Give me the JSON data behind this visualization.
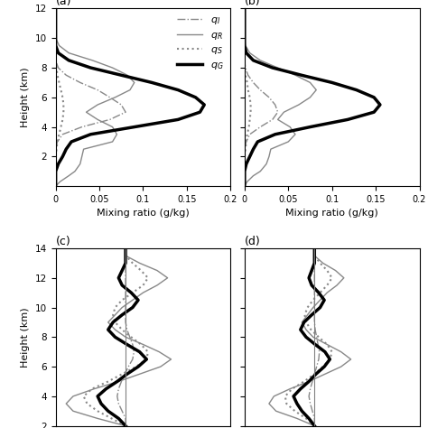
{
  "panels": {
    "a": {
      "label": "(a)",
      "ylim": [
        0,
        12
      ],
      "xlim": [
        0,
        0.2
      ],
      "yticks": [
        2,
        4,
        6,
        8,
        10,
        12
      ],
      "xticks": [
        0,
        0.05,
        0.1,
        0.15,
        0.2
      ],
      "xtick_labels": [
        "0",
        "0.05",
        "0.1",
        "0.15",
        "0.2"
      ],
      "show_legend": true,
      "ylabel": "Height (km)",
      "xlabel": "Mixing ratio (g/kg)",
      "qI": {
        "height": [
          0.0,
          0.3,
          0.7,
          1.0,
          1.5,
          2.0,
          2.5,
          3.0,
          3.5,
          4.0,
          4.5,
          5.0,
          5.5,
          6.0,
          6.5,
          7.0,
          7.5,
          8.0,
          8.5,
          9.0,
          9.5,
          10.0,
          11.0,
          12.0
        ],
        "value": [
          0.0,
          0.0,
          0.0,
          0.0,
          0.0,
          0.0,
          0.0,
          0.002,
          0.008,
          0.03,
          0.062,
          0.08,
          0.075,
          0.062,
          0.048,
          0.028,
          0.012,
          0.003,
          0.0,
          0.0,
          0.0,
          0.0,
          0.0,
          0.0
        ]
      },
      "qR": {
        "height": [
          0.0,
          0.3,
          0.7,
          1.0,
          1.5,
          2.0,
          2.5,
          3.0,
          3.5,
          4.0,
          4.5,
          5.0,
          5.5,
          6.0,
          6.5,
          7.0,
          7.5,
          8.0,
          8.5,
          9.0,
          9.5,
          10.0,
          11.0,
          12.0
        ],
        "value": [
          0.0,
          0.005,
          0.015,
          0.022,
          0.028,
          0.03,
          0.032,
          0.065,
          0.07,
          0.065,
          0.048,
          0.035,
          0.048,
          0.068,
          0.085,
          0.09,
          0.082,
          0.065,
          0.042,
          0.015,
          0.004,
          0.0,
          0.0,
          0.0
        ]
      },
      "qS": {
        "height": [
          0.0,
          0.3,
          0.7,
          1.0,
          1.5,
          2.0,
          2.5,
          3.0,
          3.5,
          4.0,
          4.5,
          5.0,
          5.5,
          6.0,
          6.5,
          7.0,
          7.5,
          8.0,
          8.5,
          9.0,
          9.5,
          10.0,
          11.0,
          12.0
        ],
        "value": [
          0.0,
          0.0,
          0.0,
          0.0,
          0.0,
          0.0,
          0.001,
          0.002,
          0.004,
          0.006,
          0.008,
          0.009,
          0.009,
          0.008,
          0.006,
          0.004,
          0.002,
          0.001,
          0.0,
          0.0,
          0.0,
          0.0,
          0.0,
          0.0
        ]
      },
      "qG": {
        "height": [
          0.0,
          0.3,
          0.7,
          1.0,
          1.5,
          2.0,
          2.5,
          3.0,
          3.5,
          4.0,
          4.5,
          5.0,
          5.5,
          6.0,
          6.5,
          7.0,
          7.5,
          8.0,
          8.5,
          9.0,
          9.5,
          10.0,
          11.0,
          12.0
        ],
        "value": [
          0.0,
          0.0,
          0.0,
          0.0,
          0.003,
          0.008,
          0.012,
          0.018,
          0.04,
          0.09,
          0.14,
          0.165,
          0.17,
          0.16,
          0.14,
          0.11,
          0.075,
          0.04,
          0.015,
          0.003,
          0.0,
          0.0,
          0.0,
          0.0
        ]
      }
    },
    "b": {
      "label": "(b)",
      "ylim": [
        0,
        12
      ],
      "xlim": [
        0,
        0.2
      ],
      "yticks": [
        2,
        4,
        6,
        8,
        10,
        12
      ],
      "xticks": [
        0,
        0.05,
        0.1,
        0.15,
        0.2
      ],
      "xtick_labels": [
        "0",
        "0.05",
        "0.1",
        "0.15",
        "0.2"
      ],
      "show_legend": false,
      "ylabel": "Height (km)",
      "xlabel": "Mixing ratio (g/kg)",
      "qI": {
        "height": [
          0.0,
          0.3,
          0.7,
          1.0,
          1.5,
          2.0,
          2.5,
          3.0,
          3.5,
          4.0,
          4.5,
          5.0,
          5.5,
          6.0,
          6.5,
          7.0,
          7.5,
          8.0,
          8.5,
          9.0,
          9.5,
          10.0,
          11.0,
          12.0
        ],
        "value": [
          0.0,
          0.0,
          0.0,
          0.0,
          0.0,
          0.0,
          0.0,
          0.002,
          0.006,
          0.018,
          0.032,
          0.038,
          0.035,
          0.028,
          0.018,
          0.01,
          0.004,
          0.001,
          0.0,
          0.0,
          0.0,
          0.0,
          0.0,
          0.0
        ]
      },
      "qR": {
        "height": [
          0.0,
          0.3,
          0.7,
          1.0,
          1.5,
          2.0,
          2.5,
          3.0,
          3.5,
          4.0,
          4.5,
          5.0,
          5.5,
          6.0,
          6.5,
          7.0,
          7.5,
          8.0,
          8.5,
          9.0,
          9.5,
          10.0,
          11.0,
          12.0
        ],
        "value": [
          0.0,
          0.003,
          0.01,
          0.018,
          0.025,
          0.028,
          0.03,
          0.05,
          0.058,
          0.052,
          0.038,
          0.045,
          0.062,
          0.075,
          0.082,
          0.075,
          0.058,
          0.038,
          0.018,
          0.006,
          0.001,
          0.0,
          0.0,
          0.0
        ]
      },
      "qS": {
        "height": [
          0.0,
          0.3,
          0.7,
          1.0,
          1.5,
          2.0,
          2.5,
          3.0,
          3.5,
          4.0,
          4.5,
          5.0,
          5.5,
          6.0,
          6.5,
          7.0,
          7.5,
          8.0,
          8.5,
          9.0,
          9.5,
          10.0,
          11.0,
          12.0
        ],
        "value": [
          0.0,
          0.0,
          0.0,
          0.0,
          0.0,
          0.0,
          0.001,
          0.002,
          0.003,
          0.005,
          0.006,
          0.007,
          0.007,
          0.006,
          0.004,
          0.003,
          0.001,
          0.0,
          0.0,
          0.0,
          0.0,
          0.0,
          0.0,
          0.0
        ]
      },
      "qG": {
        "height": [
          0.0,
          0.3,
          0.7,
          1.0,
          1.5,
          2.0,
          2.5,
          3.0,
          3.5,
          4.0,
          4.5,
          5.0,
          5.5,
          6.0,
          6.5,
          7.0,
          7.5,
          8.0,
          8.5,
          9.0,
          9.5,
          10.0,
          11.0,
          12.0
        ],
        "value": [
          0.0,
          0.0,
          0.0,
          0.0,
          0.002,
          0.006,
          0.01,
          0.015,
          0.035,
          0.075,
          0.118,
          0.148,
          0.155,
          0.148,
          0.128,
          0.1,
          0.065,
          0.032,
          0.01,
          0.002,
          0.0,
          0.0,
          0.0,
          0.0
        ]
      }
    },
    "c": {
      "label": "(c)",
      "ylim": [
        2,
        14
      ],
      "xlim": [
        -0.1,
        0.15
      ],
      "yticks": [
        2,
        4,
        6,
        8,
        10,
        12,
        14
      ],
      "show_legend": false,
      "ylabel": "Height (km)",
      "xlabel": "",
      "zero_line": true,
      "qI": {
        "height": [
          2.0,
          2.5,
          3.0,
          3.5,
          4.0,
          4.5,
          5.0,
          5.5,
          6.0,
          6.5,
          7.0,
          7.5,
          8.0,
          8.5,
          9.0,
          9.5,
          10.0,
          10.5,
          11.0,
          11.5,
          12.0,
          12.5,
          13.0,
          13.5,
          14.0
        ],
        "value": [
          0.0,
          0.0,
          -0.005,
          -0.01,
          -0.012,
          -0.01,
          -0.006,
          -0.001,
          0.004,
          0.01,
          0.012,
          0.01,
          0.006,
          0.002,
          0.0,
          0.0,
          0.0,
          0.0,
          0.0,
          0.0,
          0.0,
          0.0,
          0.0,
          0.0,
          0.0
        ]
      },
      "qR": {
        "height": [
          2.0,
          2.5,
          3.0,
          3.5,
          4.0,
          4.5,
          5.0,
          5.5,
          6.0,
          6.5,
          7.0,
          7.5,
          8.0,
          8.5,
          9.0,
          9.5,
          10.0,
          10.5,
          11.0,
          11.5,
          12.0,
          12.5,
          13.0,
          13.5,
          14.0
        ],
        "value": [
          0.0,
          -0.04,
          -0.075,
          -0.085,
          -0.075,
          -0.045,
          -0.01,
          0.02,
          0.05,
          0.065,
          0.048,
          0.025,
          0.0,
          -0.015,
          -0.025,
          -0.015,
          -0.005,
          0.01,
          0.025,
          0.045,
          0.06,
          0.045,
          0.02,
          0.0,
          0.0
        ]
      },
      "qS": {
        "height": [
          2.0,
          2.5,
          3.0,
          3.5,
          4.0,
          4.5,
          5.0,
          5.5,
          6.0,
          6.5,
          7.0,
          7.5,
          8.0,
          8.5,
          9.0,
          9.5,
          10.0,
          10.5,
          11.0,
          11.5,
          12.0,
          12.5,
          13.0,
          13.5,
          14.0
        ],
        "value": [
          0.0,
          -0.02,
          -0.04,
          -0.055,
          -0.06,
          -0.048,
          -0.025,
          -0.005,
          0.015,
          0.03,
          0.032,
          0.022,
          0.008,
          -0.005,
          -0.015,
          -0.018,
          -0.015,
          -0.005,
          0.01,
          0.025,
          0.032,
          0.022,
          0.01,
          0.0,
          0.0
        ]
      },
      "qG": {
        "height": [
          2.0,
          2.5,
          3.0,
          3.5,
          4.0,
          4.5,
          5.0,
          5.5,
          6.0,
          6.5,
          7.0,
          7.5,
          8.0,
          8.5,
          9.0,
          9.5,
          10.0,
          10.5,
          11.0,
          11.5,
          12.0,
          12.5,
          13.0,
          13.5,
          14.0
        ],
        "value": [
          0.0,
          -0.01,
          -0.025,
          -0.035,
          -0.04,
          -0.028,
          -0.012,
          0.002,
          0.018,
          0.03,
          0.02,
          0.002,
          -0.015,
          -0.025,
          -0.018,
          -0.005,
          0.01,
          0.018,
          0.008,
          -0.005,
          -0.01,
          -0.005,
          0.0,
          0.0,
          0.0
        ]
      }
    },
    "d": {
      "label": "(d)",
      "ylim": [
        2,
        14
      ],
      "xlim": [
        -0.1,
        0.15
      ],
      "yticks": [
        2,
        4,
        6,
        8,
        10,
        12,
        14
      ],
      "show_legend": false,
      "ylabel": "Height (km)",
      "xlabel": "",
      "zero_line": true,
      "qI": {
        "height": [
          2.0,
          2.5,
          3.0,
          3.5,
          4.0,
          4.5,
          5.0,
          5.5,
          6.0,
          6.5,
          7.0,
          7.5,
          8.0,
          8.5,
          9.0,
          9.5,
          10.0,
          10.5,
          11.0,
          11.5,
          12.0,
          12.5,
          13.0,
          13.5,
          14.0
        ],
        "value": [
          0.0,
          0.0,
          -0.003,
          -0.006,
          -0.008,
          -0.006,
          -0.003,
          0.0,
          0.003,
          0.006,
          0.007,
          0.005,
          0.003,
          0.001,
          0.0,
          0.0,
          0.0,
          0.0,
          0.0,
          0.0,
          0.0,
          0.0,
          0.0,
          0.0,
          0.0
        ]
      },
      "qR": {
        "height": [
          2.0,
          2.5,
          3.0,
          3.5,
          4.0,
          4.5,
          5.0,
          5.5,
          6.0,
          6.5,
          7.0,
          7.5,
          8.0,
          8.5,
          9.0,
          9.5,
          10.0,
          10.5,
          11.0,
          11.5,
          12.0,
          12.5,
          13.0,
          13.5,
          14.0
        ],
        "value": [
          0.0,
          -0.025,
          -0.055,
          -0.065,
          -0.058,
          -0.035,
          -0.008,
          0.015,
          0.038,
          0.052,
          0.038,
          0.018,
          -0.002,
          -0.012,
          -0.018,
          -0.01,
          -0.002,
          0.008,
          0.018,
          0.032,
          0.042,
          0.03,
          0.012,
          0.0,
          0.0
        ]
      },
      "qS": {
        "height": [
          2.0,
          2.5,
          3.0,
          3.5,
          4.0,
          4.5,
          5.0,
          5.5,
          6.0,
          6.5,
          7.0,
          7.5,
          8.0,
          8.5,
          9.0,
          9.5,
          10.0,
          10.5,
          11.0,
          11.5,
          12.0,
          12.5,
          13.0,
          13.5,
          14.0
        ],
        "value": [
          0.0,
          -0.012,
          -0.028,
          -0.04,
          -0.042,
          -0.032,
          -0.015,
          0.0,
          0.012,
          0.022,
          0.025,
          0.018,
          0.006,
          -0.005,
          -0.012,
          -0.014,
          -0.01,
          -0.002,
          0.008,
          0.018,
          0.025,
          0.018,
          0.008,
          0.0,
          0.0
        ]
      },
      "qG": {
        "height": [
          2.0,
          2.5,
          3.0,
          3.5,
          4.0,
          4.5,
          5.0,
          5.5,
          6.0,
          6.5,
          7.0,
          7.5,
          8.0,
          8.5,
          9.0,
          9.5,
          10.0,
          10.5,
          11.0,
          11.5,
          12.0,
          12.5,
          13.0,
          13.5,
          14.0
        ],
        "value": [
          0.0,
          -0.008,
          -0.018,
          -0.025,
          -0.03,
          -0.02,
          -0.008,
          0.002,
          0.014,
          0.022,
          0.015,
          0.001,
          -0.012,
          -0.02,
          -0.015,
          -0.004,
          0.008,
          0.014,
          0.006,
          -0.004,
          -0.008,
          -0.004,
          0.0,
          0.0,
          0.0
        ]
      }
    }
  },
  "line_styles": {
    "qI": {
      "color": "#888888",
      "linestyle": "-.",
      "linewidth": 1.0
    },
    "qR": {
      "color": "#888888",
      "linestyle": "-",
      "linewidth": 1.0
    },
    "qS": {
      "color": "#888888",
      "linestyle": ":",
      "linewidth": 1.5
    },
    "qG": {
      "color": "black",
      "linestyle": "-",
      "linewidth": 2.5
    }
  },
  "legend_labels": {
    "qI": "$q_I$",
    "qR": "$q_R$",
    "qS": "$q_S$",
    "qG": "$q_G$"
  },
  "figsize": [
    4.74,
    4.74
  ],
  "dpi": 100
}
